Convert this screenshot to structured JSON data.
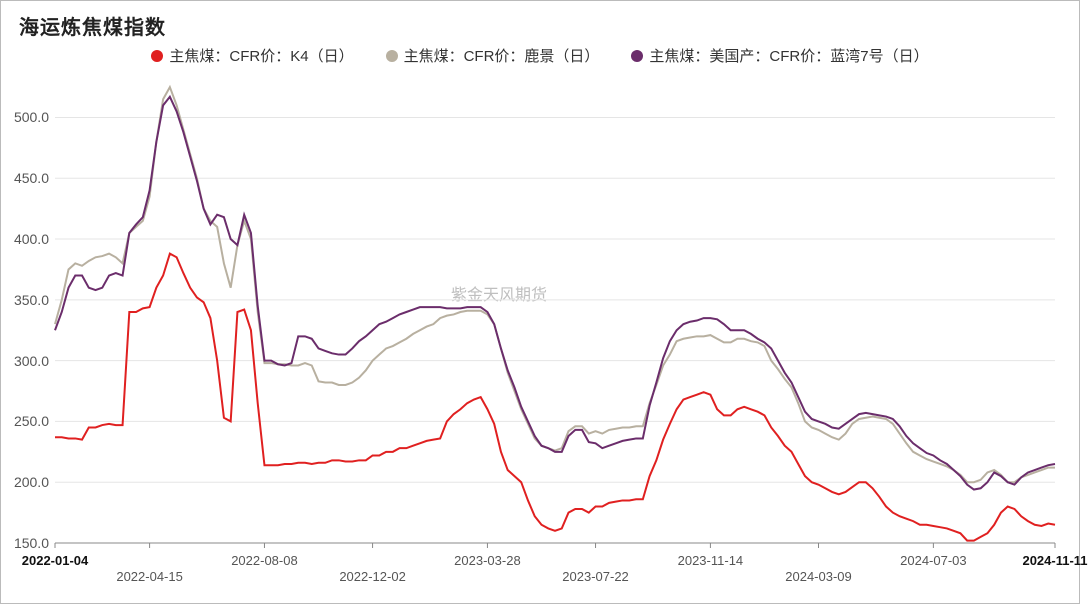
{
  "title": "海运炼焦煤指数",
  "watermark": "紫金天风期货",
  "chart": {
    "type": "line",
    "background_color": "#ffffff",
    "grid_color": "#e5e5e5",
    "axis_color": "#888888",
    "title_fontsize": 20,
    "label_fontsize": 14,
    "y": {
      "min": 150,
      "max": 530,
      "ticks": [
        150,
        200,
        250,
        300,
        350,
        400,
        450,
        500
      ]
    },
    "x": {
      "min": 0,
      "max": 148,
      "ticks": [
        {
          "idx": 0,
          "label": "2022-01-04",
          "bold": true
        },
        {
          "idx": 14,
          "label": "2022-04-15",
          "bold": false
        },
        {
          "idx": 31,
          "label": "2022-08-08",
          "bold": false
        },
        {
          "idx": 47,
          "label": "2022-12-02",
          "bold": false
        },
        {
          "idx": 64,
          "label": "2023-03-28",
          "bold": false
        },
        {
          "idx": 80,
          "label": "2023-07-22",
          "bold": false
        },
        {
          "idx": 97,
          "label": "2023-11-14",
          "bold": false
        },
        {
          "idx": 113,
          "label": "2024-03-09",
          "bold": false
        },
        {
          "idx": 130,
          "label": "2024-07-03",
          "bold": false
        },
        {
          "idx": 148,
          "label": "2024-11-11",
          "bold": true
        }
      ]
    },
    "series": [
      {
        "name": "主焦煤：CFR价：K4（日）",
        "color": "#e02020",
        "line_width": 2,
        "values": [
          237,
          237,
          236,
          236,
          235,
          245,
          245,
          247,
          248,
          247,
          247,
          340,
          340,
          343,
          344,
          360,
          370,
          388,
          385,
          372,
          360,
          352,
          348,
          335,
          300,
          253,
          250,
          340,
          342,
          325,
          265,
          214,
          214,
          214,
          215,
          215,
          216,
          216,
          215,
          216,
          216,
          218,
          218,
          217,
          217,
          218,
          218,
          222,
          222,
          225,
          225,
          228,
          228,
          230,
          232,
          234,
          235,
          236,
          250,
          256,
          260,
          265,
          268,
          270,
          260,
          248,
          225,
          210,
          205,
          200,
          185,
          172,
          165,
          162,
          160,
          162,
          175,
          178,
          178,
          175,
          180,
          180,
          183,
          184,
          185,
          185,
          186,
          186,
          205,
          218,
          235,
          248,
          260,
          268,
          270,
          272,
          274,
          272,
          260,
          255,
          255,
          260,
          262,
          260,
          258,
          255,
          245,
          238,
          230,
          225,
          215,
          205,
          200,
          198,
          195,
          192,
          190,
          192,
          196,
          200,
          200,
          195,
          188,
          180,
          175,
          172,
          170,
          168,
          165,
          165,
          164,
          163,
          162,
          160,
          158,
          152,
          152,
          155,
          158,
          165,
          175,
          180,
          178,
          172,
          168,
          165,
          164,
          166,
          165
        ]
      },
      {
        "name": "主焦煤：CFR价：鹿景（日）",
        "color": "#b8b0a0",
        "line_width": 2,
        "values": [
          330,
          350,
          375,
          380,
          378,
          382,
          385,
          386,
          388,
          385,
          380,
          405,
          410,
          415,
          435,
          480,
          515,
          525,
          510,
          490,
          470,
          450,
          425,
          415,
          410,
          380,
          360,
          395,
          415,
          400,
          340,
          298,
          298,
          297,
          297,
          296,
          296,
          298,
          296,
          283,
          282,
          282,
          280,
          280,
          282,
          286,
          292,
          300,
          305,
          310,
          312,
          315,
          318,
          322,
          325,
          328,
          330,
          335,
          337,
          338,
          340,
          341,
          341,
          341,
          338,
          330,
          310,
          290,
          275,
          260,
          248,
          236,
          230,
          228,
          226,
          228,
          242,
          246,
          246,
          240,
          242,
          240,
          243,
          244,
          245,
          245,
          246,
          246,
          265,
          280,
          296,
          305,
          316,
          318,
          319,
          320,
          320,
          321,
          318,
          315,
          315,
          318,
          318,
          316,
          315,
          312,
          300,
          293,
          285,
          278,
          265,
          250,
          245,
          243,
          240,
          237,
          235,
          240,
          248,
          252,
          253,
          254,
          253,
          252,
          248,
          240,
          232,
          225,
          222,
          219,
          217,
          215,
          213,
          210,
          206,
          200,
          200,
          202,
          208,
          210,
          206,
          200,
          200,
          204,
          206,
          208,
          210,
          212,
          212
        ]
      },
      {
        "name": "主焦煤：美国产：CFR价：蓝湾7号（日）",
        "color": "#6b2d6b",
        "line_width": 2,
        "values": [
          325,
          340,
          360,
          370,
          370,
          360,
          358,
          360,
          370,
          372,
          370,
          405,
          412,
          418,
          440,
          480,
          510,
          517,
          505,
          488,
          468,
          448,
          425,
          412,
          420,
          418,
          400,
          395,
          420,
          405,
          345,
          300,
          300,
          297,
          296,
          298,
          320,
          320,
          318,
          310,
          308,
          306,
          305,
          305,
          310,
          316,
          320,
          325,
          330,
          332,
          335,
          338,
          340,
          342,
          344,
          344,
          344,
          344,
          343,
          343,
          343,
          344,
          344,
          344,
          340,
          330,
          310,
          292,
          278,
          262,
          250,
          238,
          230,
          228,
          225,
          225,
          238,
          243,
          243,
          233,
          232,
          228,
          230,
          232,
          234,
          235,
          236,
          236,
          263,
          282,
          302,
          316,
          325,
          330,
          332,
          333,
          335,
          335,
          334,
          330,
          325,
          325,
          325,
          322,
          318,
          315,
          310,
          300,
          290,
          282,
          270,
          258,
          252,
          250,
          248,
          245,
          244,
          248,
          252,
          256,
          257,
          256,
          255,
          254,
          252,
          246,
          238,
          232,
          228,
          224,
          222,
          218,
          215,
          210,
          205,
          198,
          194,
          195,
          200,
          208,
          205,
          200,
          198,
          204,
          208,
          210,
          212,
          214,
          215
        ]
      }
    ]
  }
}
